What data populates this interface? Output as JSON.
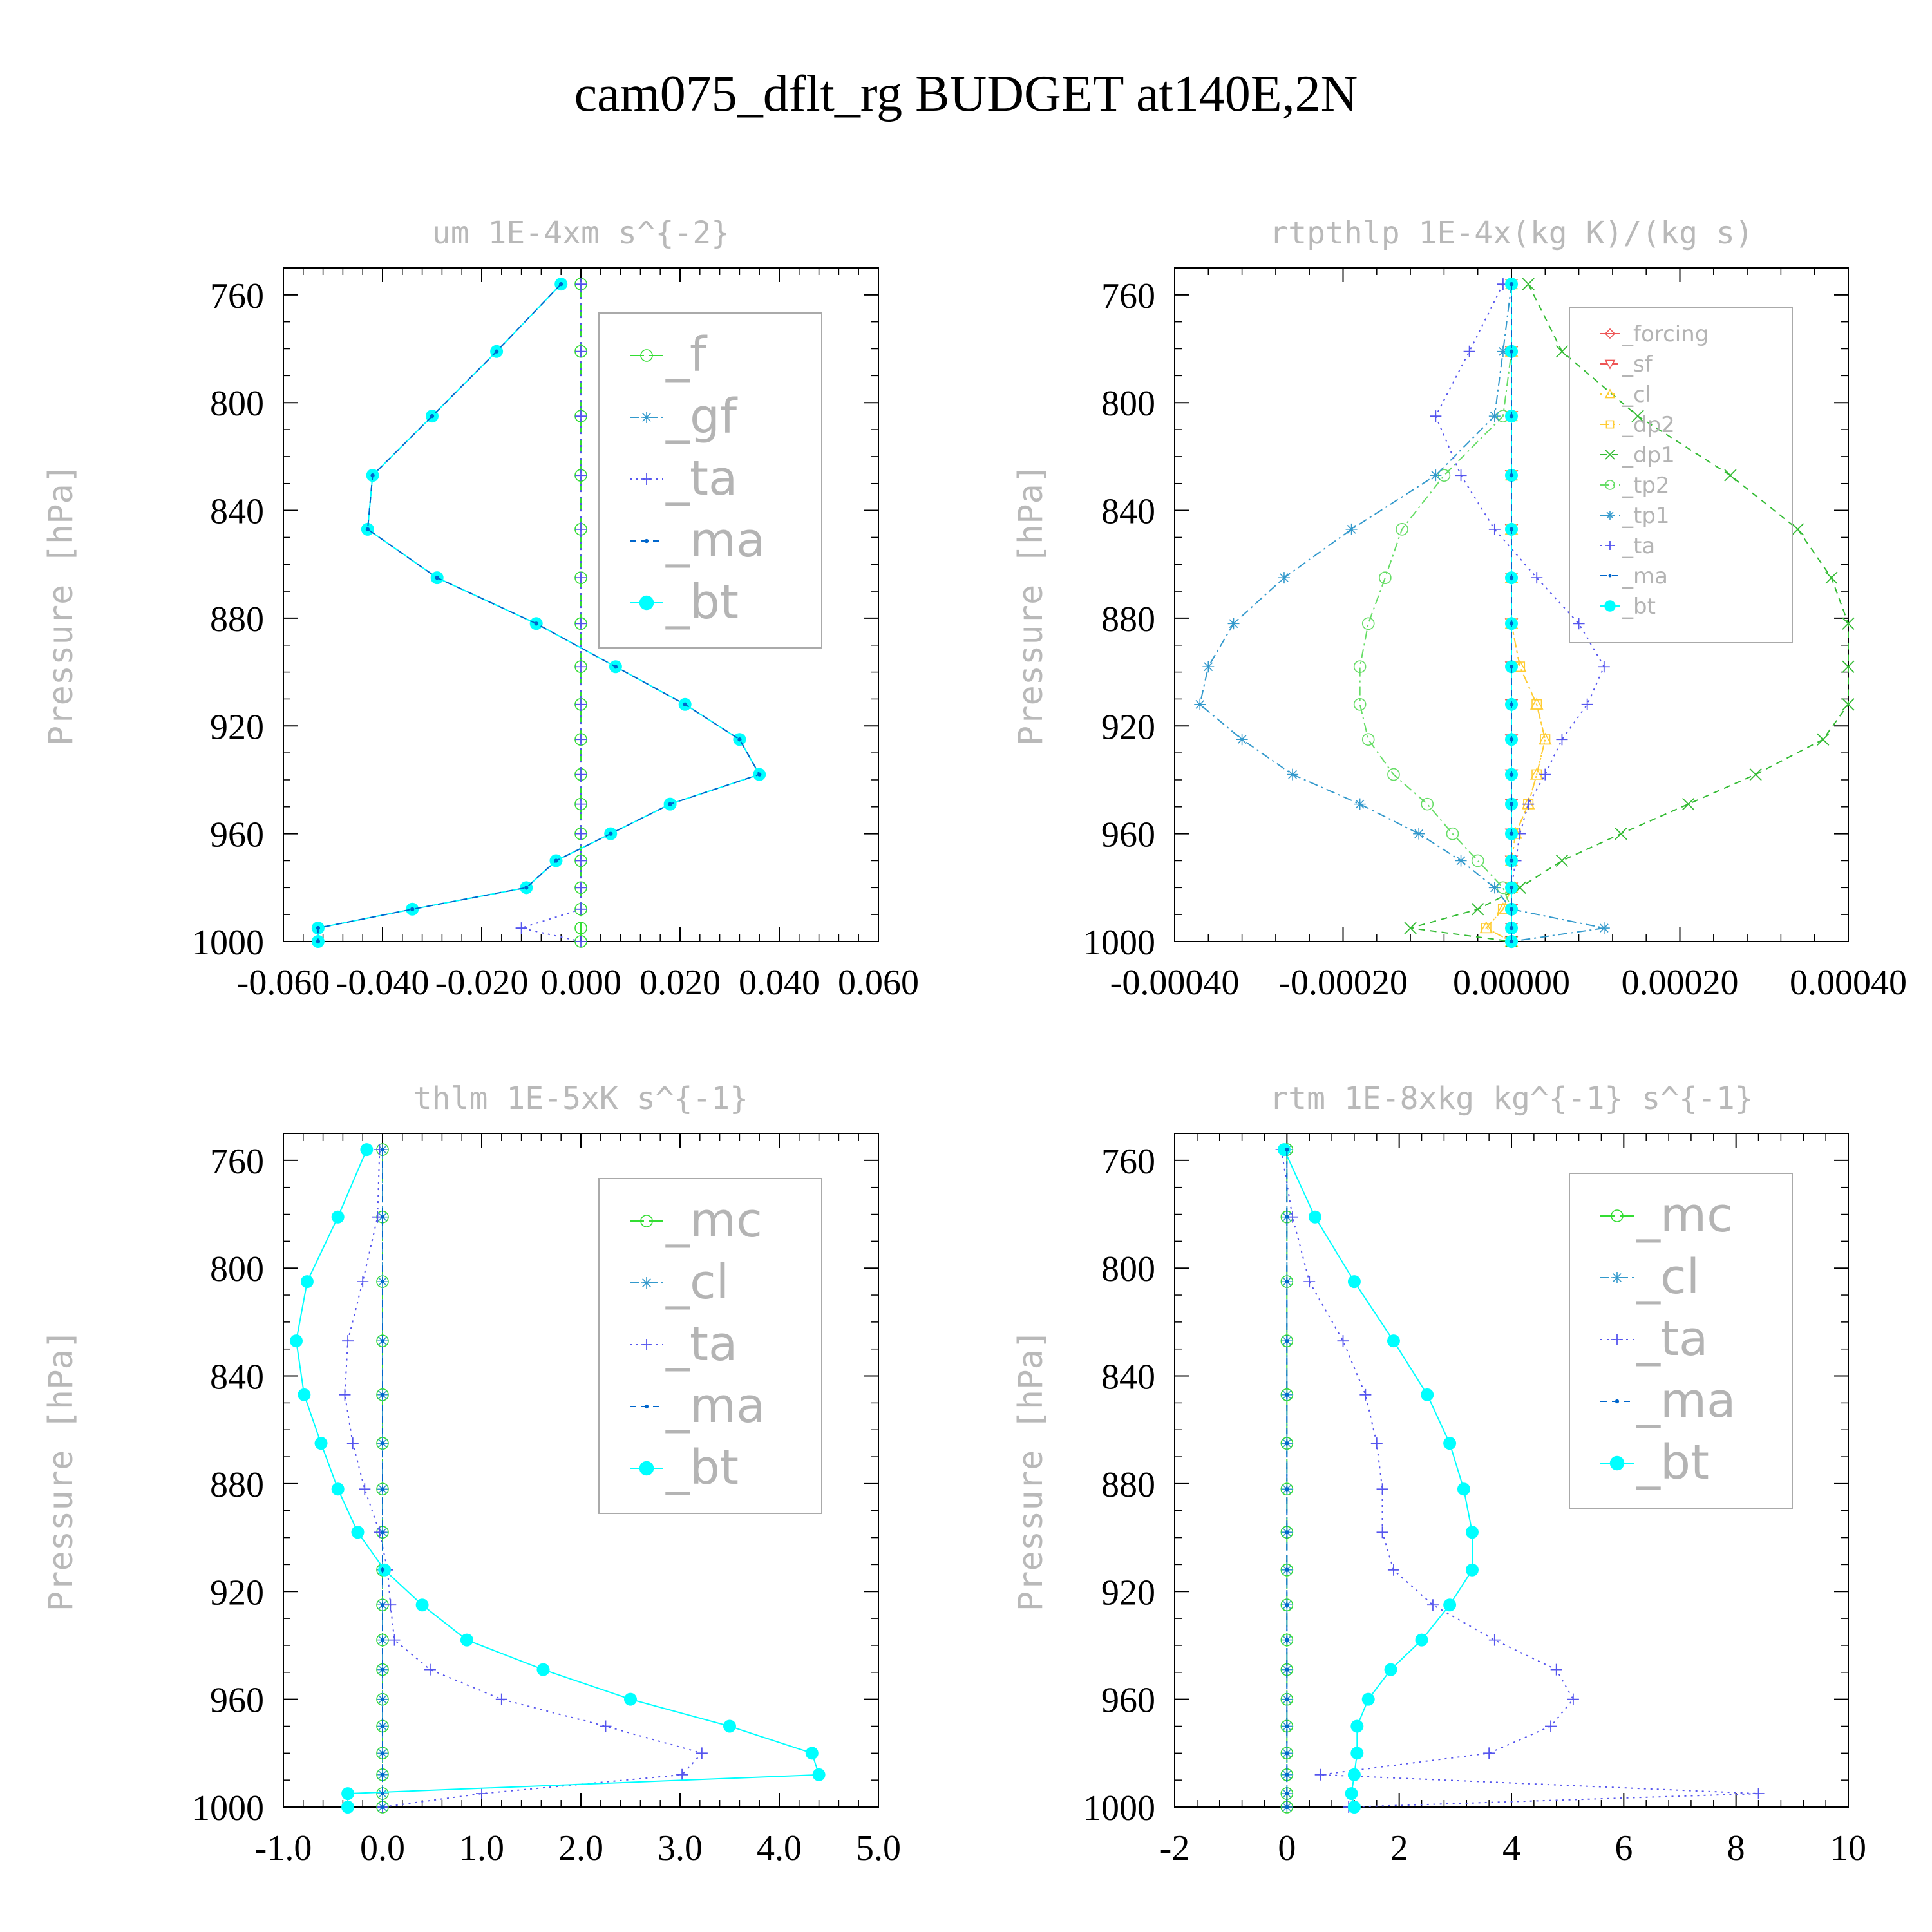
{
  "figure": {
    "title": "cam075_dflt_rg  BUDGET at140E,2N"
  },
  "chart_data": [
    {
      "type": "line",
      "title": "um  1E-4xm s^{-2}",
      "ylabel": "Pressure [hPa]",
      "xlabel": "",
      "xlim": [
        -0.06,
        0.06
      ],
      "ylim": [
        750,
        1000
      ],
      "y_inverted": true,
      "xticks": [
        -0.06,
        -0.04,
        -0.02,
        0.0,
        0.02,
        0.04,
        0.06
      ],
      "xtick_labels": [
        "-0.060",
        "-0.040",
        "-0.020",
        "0.000",
        "0.020",
        "0.040",
        "0.060"
      ],
      "yticks": [
        760,
        800,
        840,
        880,
        920,
        960,
        1000
      ],
      "ytick_labels": [
        "760",
        "800",
        "840",
        "880",
        "920",
        "960",
        "1000"
      ],
      "legend_position": "top-right",
      "legend_size": "large",
      "levels": [
        756,
        781,
        805,
        827,
        847,
        865,
        882,
        898,
        912,
        925,
        938,
        949,
        960,
        970,
        980,
        988,
        995,
        1000
      ],
      "series": [
        {
          "name": "_f",
          "color": "#33dd33",
          "marker": "circle-open",
          "dash": "long",
          "values": [
            0,
            0,
            0,
            0,
            0,
            0,
            0,
            0,
            0,
            0,
            0,
            0,
            0,
            0,
            0,
            0,
            0,
            0
          ]
        },
        {
          "name": "_gf",
          "color": "#3399cc",
          "marker": "asterisk",
          "dash": "dashdot",
          "values": [
            -0.004,
            -0.017,
            -0.03,
            -0.042,
            -0.043,
            -0.029,
            -0.009,
            0.007,
            0.021,
            0.032,
            0.036,
            0.018,
            0.006,
            -0.005,
            -0.011,
            -0.034,
            -0.053,
            -0.053
          ]
        },
        {
          "name": "_ta",
          "color": "#5555ee",
          "marker": "plus",
          "dash": "dotted",
          "values": [
            0,
            0,
            0,
            0,
            0,
            0,
            0,
            0,
            0,
            0,
            0,
            0,
            0,
            0,
            0,
            0,
            -0.012,
            0
          ]
        },
        {
          "name": "_ma",
          "color": "#0066cc",
          "marker": "dot",
          "dash": "dashed",
          "values": [
            -0.004,
            -0.017,
            -0.03,
            -0.042,
            -0.043,
            -0.029,
            -0.009,
            0.007,
            0.021,
            0.032,
            0.036,
            0.018,
            0.006,
            -0.005,
            -0.011,
            -0.034,
            -0.053,
            -0.053
          ]
        },
        {
          "name": "_bt",
          "color": "#00ffff",
          "marker": "filled-circle",
          "dash": "solid",
          "values": [
            -0.004,
            -0.017,
            -0.03,
            -0.042,
            -0.043,
            -0.029,
            -0.009,
            0.007,
            0.021,
            0.032,
            0.036,
            0.018,
            0.006,
            -0.005,
            -0.011,
            -0.034,
            -0.053,
            -0.053
          ]
        }
      ]
    },
    {
      "type": "line",
      "title": "rtpthlp  1E-4x(kg K)/(kg s)",
      "ylabel": "Pressure [hPa]",
      "xlabel": "",
      "xlim": [
        -0.0004,
        0.0004
      ],
      "ylim": [
        750,
        1000
      ],
      "y_inverted": true,
      "xticks": [
        -0.0004,
        -0.0002,
        0.0,
        0.0002,
        0.0004
      ],
      "xtick_labels": [
        "-0.00040",
        "-0.00020",
        "0.00000",
        "0.00020",
        "0.00040"
      ],
      "yticks": [
        760,
        800,
        840,
        880,
        920,
        960,
        1000
      ],
      "ytick_labels": [
        "760",
        "800",
        "840",
        "880",
        "920",
        "960",
        "1000"
      ],
      "legend_position": "top-right",
      "legend_size": "small",
      "levels": [
        756,
        781,
        805,
        827,
        847,
        865,
        882,
        898,
        912,
        925,
        938,
        949,
        960,
        970,
        980,
        988,
        995,
        1000
      ],
      "series": [
        {
          "name": "_forcing",
          "color": "#ee5555",
          "marker": "diamond-open",
          "dash": "solid",
          "values": [
            0,
            0,
            0,
            0,
            0,
            0,
            0,
            0,
            0,
            0,
            0,
            0,
            0,
            0,
            0,
            0,
            0,
            0
          ]
        },
        {
          "name": "_sf",
          "color": "#ee5555",
          "marker": "triangle-down-open",
          "dash": "dashed",
          "values": [
            0,
            0,
            0,
            0,
            0,
            0,
            0,
            0,
            0,
            0,
            0,
            0,
            0,
            0,
            0,
            0,
            0,
            0
          ]
        },
        {
          "name": "_cl",
          "color": "#ffcc33",
          "marker": "triangle-up-open",
          "dash": "dotted",
          "values": [
            0,
            0,
            0,
            0,
            0,
            0,
            0,
            1e-05,
            3e-05,
            4e-05,
            3e-05,
            2e-05,
            5e-06,
            0,
            0,
            -1e-05,
            -3e-05,
            0
          ]
        },
        {
          "name": "_dp2",
          "color": "#ffcc33",
          "marker": "square-open",
          "dash": "dashdot",
          "values": [
            0,
            0,
            0,
            0,
            0,
            0,
            0,
            1e-05,
            3e-05,
            4e-05,
            3e-05,
            2e-05,
            5e-06,
            0,
            0,
            -1e-05,
            -3e-05,
            0
          ]
        },
        {
          "name": "_dp1",
          "color": "#33bb33",
          "marker": "x",
          "dash": "dashed",
          "values": [
            2e-05,
            6e-05,
            0.00015,
            0.00026,
            0.00034,
            0.00038,
            0.0004,
            0.0004,
            0.0004,
            0.00037,
            0.00029,
            0.00021,
            0.00013,
            6e-05,
            1e-05,
            -4e-05,
            -0.00012,
            0
          ]
        },
        {
          "name": "_tp2",
          "color": "#66dd66",
          "marker": "circle-open",
          "dash": "dashdot",
          "values": [
            0,
            0,
            -1e-05,
            -8e-05,
            -0.00013,
            -0.00015,
            -0.00017,
            -0.00018,
            -0.00018,
            -0.00017,
            -0.00014,
            -0.0001,
            -7e-05,
            -4e-05,
            -1e-05,
            0,
            0,
            0
          ]
        },
        {
          "name": "_tp1",
          "color": "#3399cc",
          "marker": "asterisk",
          "dash": "dashdot",
          "values": [
            0,
            -1e-05,
            -2e-05,
            -9e-05,
            -0.00019,
            -0.00027,
            -0.00033,
            -0.00036,
            -0.00037,
            -0.00032,
            -0.00026,
            -0.00018,
            -0.00011,
            -6e-05,
            -2e-05,
            0,
            0.00011,
            0
          ]
        },
        {
          "name": "_ta",
          "color": "#5555ee",
          "marker": "plus",
          "dash": "dotted",
          "values": [
            -1e-05,
            -5e-05,
            -9e-05,
            -6e-05,
            -2e-05,
            3e-05,
            8e-05,
            0.00011,
            9e-05,
            6e-05,
            4e-05,
            2e-05,
            1e-05,
            5e-06,
            0,
            0,
            0,
            0
          ]
        },
        {
          "name": "_ma",
          "color": "#0066cc",
          "marker": "dot",
          "dash": "dashed",
          "values": [
            0,
            0,
            0,
            0,
            0,
            0,
            0,
            0,
            0,
            0,
            0,
            0,
            0,
            0,
            0,
            0,
            0,
            0
          ]
        },
        {
          "name": "_bt",
          "color": "#00ffff",
          "marker": "filled-circle",
          "dash": "solid",
          "values": [
            0,
            0,
            0,
            0,
            0,
            0,
            0,
            0,
            0,
            0,
            0,
            0,
            0,
            0,
            0,
            0,
            0,
            0
          ]
        }
      ]
    },
    {
      "type": "line",
      "title": "thlm  1E-5xK s^{-1}",
      "ylabel": "Pressure [hPa]",
      "xlabel": "",
      "xlim": [
        -1.0,
        5.0
      ],
      "ylim": [
        750,
        1000
      ],
      "y_inverted": true,
      "xticks": [
        -1.0,
        0.0,
        1.0,
        2.0,
        3.0,
        4.0,
        5.0
      ],
      "xtick_labels": [
        "-1.0",
        "0.0",
        "1.0",
        "2.0",
        "3.0",
        "4.0",
        "5.0"
      ],
      "yticks": [
        760,
        800,
        840,
        880,
        920,
        960,
        1000
      ],
      "ytick_labels": [
        "760",
        "800",
        "840",
        "880",
        "920",
        "960",
        "1000"
      ],
      "legend_position": "top-right",
      "legend_size": "large",
      "levels": [
        756,
        781,
        805,
        827,
        847,
        865,
        882,
        898,
        912,
        925,
        938,
        949,
        960,
        970,
        980,
        988,
        995,
        1000
      ],
      "series": [
        {
          "name": "_mc",
          "color": "#33dd33",
          "marker": "circle-open",
          "dash": "long",
          "values": [
            0,
            0,
            0,
            0,
            0,
            0,
            0,
            0,
            0,
            0,
            0,
            0,
            0,
            0,
            0,
            0,
            0,
            0
          ]
        },
        {
          "name": "_cl",
          "color": "#3399cc",
          "marker": "asterisk",
          "dash": "dashdot",
          "values": [
            0,
            0,
            0,
            0,
            0,
            0,
            0,
            0,
            0,
            0,
            0,
            0,
            0,
            0,
            0,
            0,
            0,
            0
          ]
        },
        {
          "name": "_ta",
          "color": "#5555ee",
          "marker": "plus",
          "dash": "dotted",
          "values": [
            -0.03,
            -0.05,
            -0.2,
            -0.35,
            -0.38,
            -0.3,
            -0.18,
            -0.03,
            0.05,
            0.08,
            0.12,
            0.48,
            1.2,
            2.25,
            3.22,
            3.02,
            1.0,
            0
          ]
        },
        {
          "name": "_ma",
          "color": "#0066cc",
          "marker": "dot",
          "dash": "dashed",
          "values": [
            0,
            0,
            0,
            0,
            0,
            0,
            0,
            0,
            0,
            0,
            0,
            0,
            0,
            0,
            0,
            0,
            0,
            0
          ]
        },
        {
          "name": "_bt",
          "color": "#00ffff",
          "marker": "filled-circle",
          "dash": "solid",
          "values": [
            -0.16,
            -0.45,
            -0.76,
            -0.87,
            -0.79,
            -0.62,
            -0.45,
            -0.25,
            0.02,
            0.4,
            0.85,
            1.62,
            2.5,
            3.5,
            4.33,
            4.4,
            -0.35,
            -0.35
          ]
        }
      ]
    },
    {
      "type": "line",
      "title": "rtm  1E-8xkg kg^{-1} s^{-1}",
      "ylabel": "Pressure [hPa]",
      "xlabel": "",
      "xlim": [
        -2,
        10
      ],
      "ylim": [
        750,
        1000
      ],
      "y_inverted": true,
      "xticks": [
        -2,
        0,
        2,
        4,
        6,
        8,
        10
      ],
      "xtick_labels": [
        "-2",
        "0",
        "2",
        "4",
        "6",
        "8",
        "10"
      ],
      "yticks": [
        760,
        800,
        840,
        880,
        920,
        960,
        1000
      ],
      "ytick_labels": [
        "760",
        "800",
        "840",
        "880",
        "920",
        "960",
        "1000"
      ],
      "legend_position": "top-right",
      "legend_size": "large",
      "levels": [
        756,
        781,
        805,
        827,
        847,
        865,
        882,
        898,
        912,
        925,
        938,
        949,
        960,
        970,
        980,
        988,
        995,
        1000
      ],
      "series": [
        {
          "name": "_mc",
          "color": "#33dd33",
          "marker": "circle-open",
          "dash": "long",
          "values": [
            0,
            0,
            0,
            0,
            0,
            0,
            0,
            0,
            0,
            0,
            0,
            0,
            0,
            0,
            0,
            0,
            0,
            0
          ]
        },
        {
          "name": "_cl",
          "color": "#3399cc",
          "marker": "asterisk",
          "dash": "dashdot",
          "values": [
            0,
            0,
            0,
            0,
            0,
            0,
            0,
            0,
            0,
            0,
            0,
            0,
            0,
            0,
            0,
            0,
            0,
            0
          ]
        },
        {
          "name": "_ta",
          "color": "#5555ee",
          "marker": "plus",
          "dash": "dotted",
          "values": [
            -0.1,
            0.1,
            0.4,
            1.0,
            1.4,
            1.6,
            1.7,
            1.7,
            1.9,
            2.6,
            3.7,
            4.8,
            5.1,
            4.7,
            3.6,
            0.6,
            8.4,
            1.1
          ]
        },
        {
          "name": "_ma",
          "color": "#0066cc",
          "marker": "dot",
          "dash": "dashed",
          "values": [
            0,
            0,
            0,
            0,
            0,
            0,
            0,
            0,
            0,
            0,
            0,
            0,
            0,
            0,
            0,
            0,
            0,
            0
          ]
        },
        {
          "name": "_bt",
          "color": "#00ffff",
          "marker": "filled-circle",
          "dash": "solid",
          "values": [
            -0.05,
            0.5,
            1.2,
            1.9,
            2.5,
            2.9,
            3.15,
            3.3,
            3.3,
            2.9,
            2.4,
            1.85,
            1.45,
            1.25,
            1.25,
            1.2,
            1.15,
            1.2
          ]
        }
      ]
    }
  ]
}
